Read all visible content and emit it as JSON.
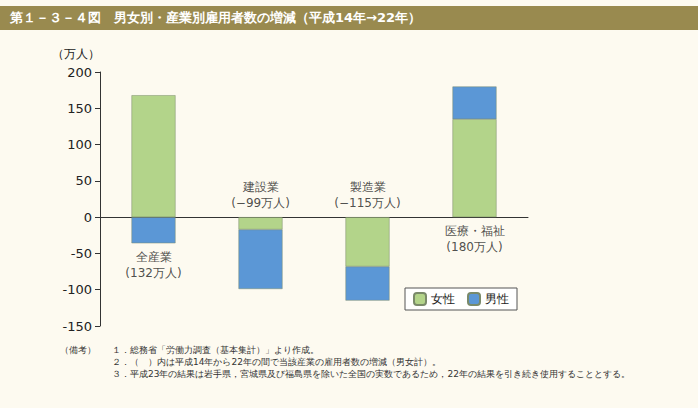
{
  "chart_data": {
    "type": "bar",
    "title": "第１－３－４図　男女別・産業別雇用者数の増減（平成14年→22年）",
    "y_label": "（万人）",
    "categories": [
      "全産業",
      "建設業",
      "製造業",
      "医療・福祉"
    ],
    "series": [
      {
        "name": "女性",
        "color": "#b3d48a",
        "values": [
          168,
          -17,
          -68,
          135
        ]
      },
      {
        "name": "男性",
        "color": "#5b97d6",
        "values": [
          -36,
          -82,
          -47,
          45
        ]
      }
    ],
    "annotations": [
      {
        "category": "全産業",
        "text": "(132万人)"
      },
      {
        "category": "建設業",
        "text": "(−99万人)"
      },
      {
        "category": "製造業",
        "text": "(−115万人)"
      },
      {
        "category": "医療・福祉",
        "text": "(180万人)"
      }
    ],
    "ylim": [
      -150,
      200
    ],
    "yticks": [
      -150,
      -100,
      -50,
      0,
      50,
      100,
      150,
      200
    ],
    "grid": false,
    "stacked": true,
    "legend": "bottom-right",
    "tick_labels": "y"
  },
  "notes": {
    "label": "（備考）",
    "items": [
      "１．総務省「労働力調査（基本集計）」より作成。",
      "２．（　）内は平成14年から22年の間で当該産業の雇用者数の増減（男女計）。",
      "３．平成23年の結果は岩手県，宮城県及び福島県を除いた全国の実数であるため，22年の結果を引き続き使用することとする。"
    ]
  }
}
